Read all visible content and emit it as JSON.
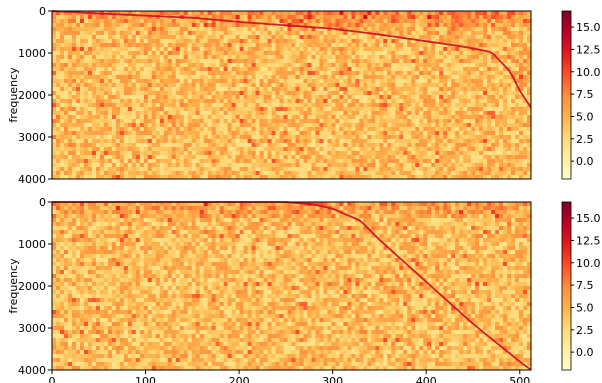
{
  "chart_data": [
    {
      "type": "heatmap",
      "title": "",
      "xlabel": "",
      "ylabel": "frequency",
      "xlim": [
        0,
        512
      ],
      "ylim": [
        4000,
        0
      ],
      "x_ticks": [],
      "y_ticks": [
        0,
        1000,
        2000,
        3000,
        4000
      ],
      "y_tick_labels": [
        "0",
        "1000",
        "2000",
        "3000",
        "4000"
      ],
      "colormap": "YlOrRd",
      "colorbar": {
        "range": [
          -2.0,
          16.8
        ],
        "ticks": [
          0.0,
          2.5,
          5.0,
          7.5,
          10.0,
          12.5,
          15.0
        ],
        "tick_labels": [
          "0.0",
          "2.5",
          "5.0",
          "7.5",
          "10.0",
          "12.5",
          "15.0"
        ]
      },
      "ridge": {
        "x": [
          0,
          50,
          100,
          150,
          200,
          250,
          300,
          350,
          400,
          440,
          470,
          490,
          500,
          512
        ],
        "frequency": [
          0,
          60,
          110,
          160,
          260,
          340,
          420,
          560,
          720,
          850,
          980,
          1450,
          1900,
          2300
        ]
      }
    },
    {
      "type": "heatmap",
      "title": "",
      "xlabel": "",
      "ylabel": "frequency",
      "xlim": [
        0,
        512
      ],
      "ylim": [
        4000,
        0
      ],
      "x_ticks": [
        0,
        100,
        200,
        300,
        400,
        500
      ],
      "x_tick_labels": [
        "0",
        "100",
        "200",
        "300",
        "400",
        "500"
      ],
      "y_ticks": [
        0,
        1000,
        2000,
        3000,
        4000
      ],
      "y_tick_labels": [
        "0",
        "1000",
        "2000",
        "3000",
        "4000"
      ],
      "colormap": "YlOrRd",
      "colorbar": {
        "range": [
          -2.0,
          16.8
        ],
        "ticks": [
          0.0,
          2.5,
          5.0,
          7.5,
          10.0,
          12.5,
          15.0
        ],
        "tick_labels": [
          "0.0",
          "2.5",
          "5.0",
          "7.5",
          "10.0",
          "12.5",
          "15.0"
        ]
      },
      "ridge": {
        "x": [
          0,
          100,
          200,
          250,
          280,
          300,
          330,
          350,
          400,
          450,
          500,
          512
        ],
        "frequency": [
          0,
          0,
          0,
          0,
          60,
          160,
          450,
          900,
          1900,
          2900,
          3800,
          4000
        ]
      }
    }
  ]
}
